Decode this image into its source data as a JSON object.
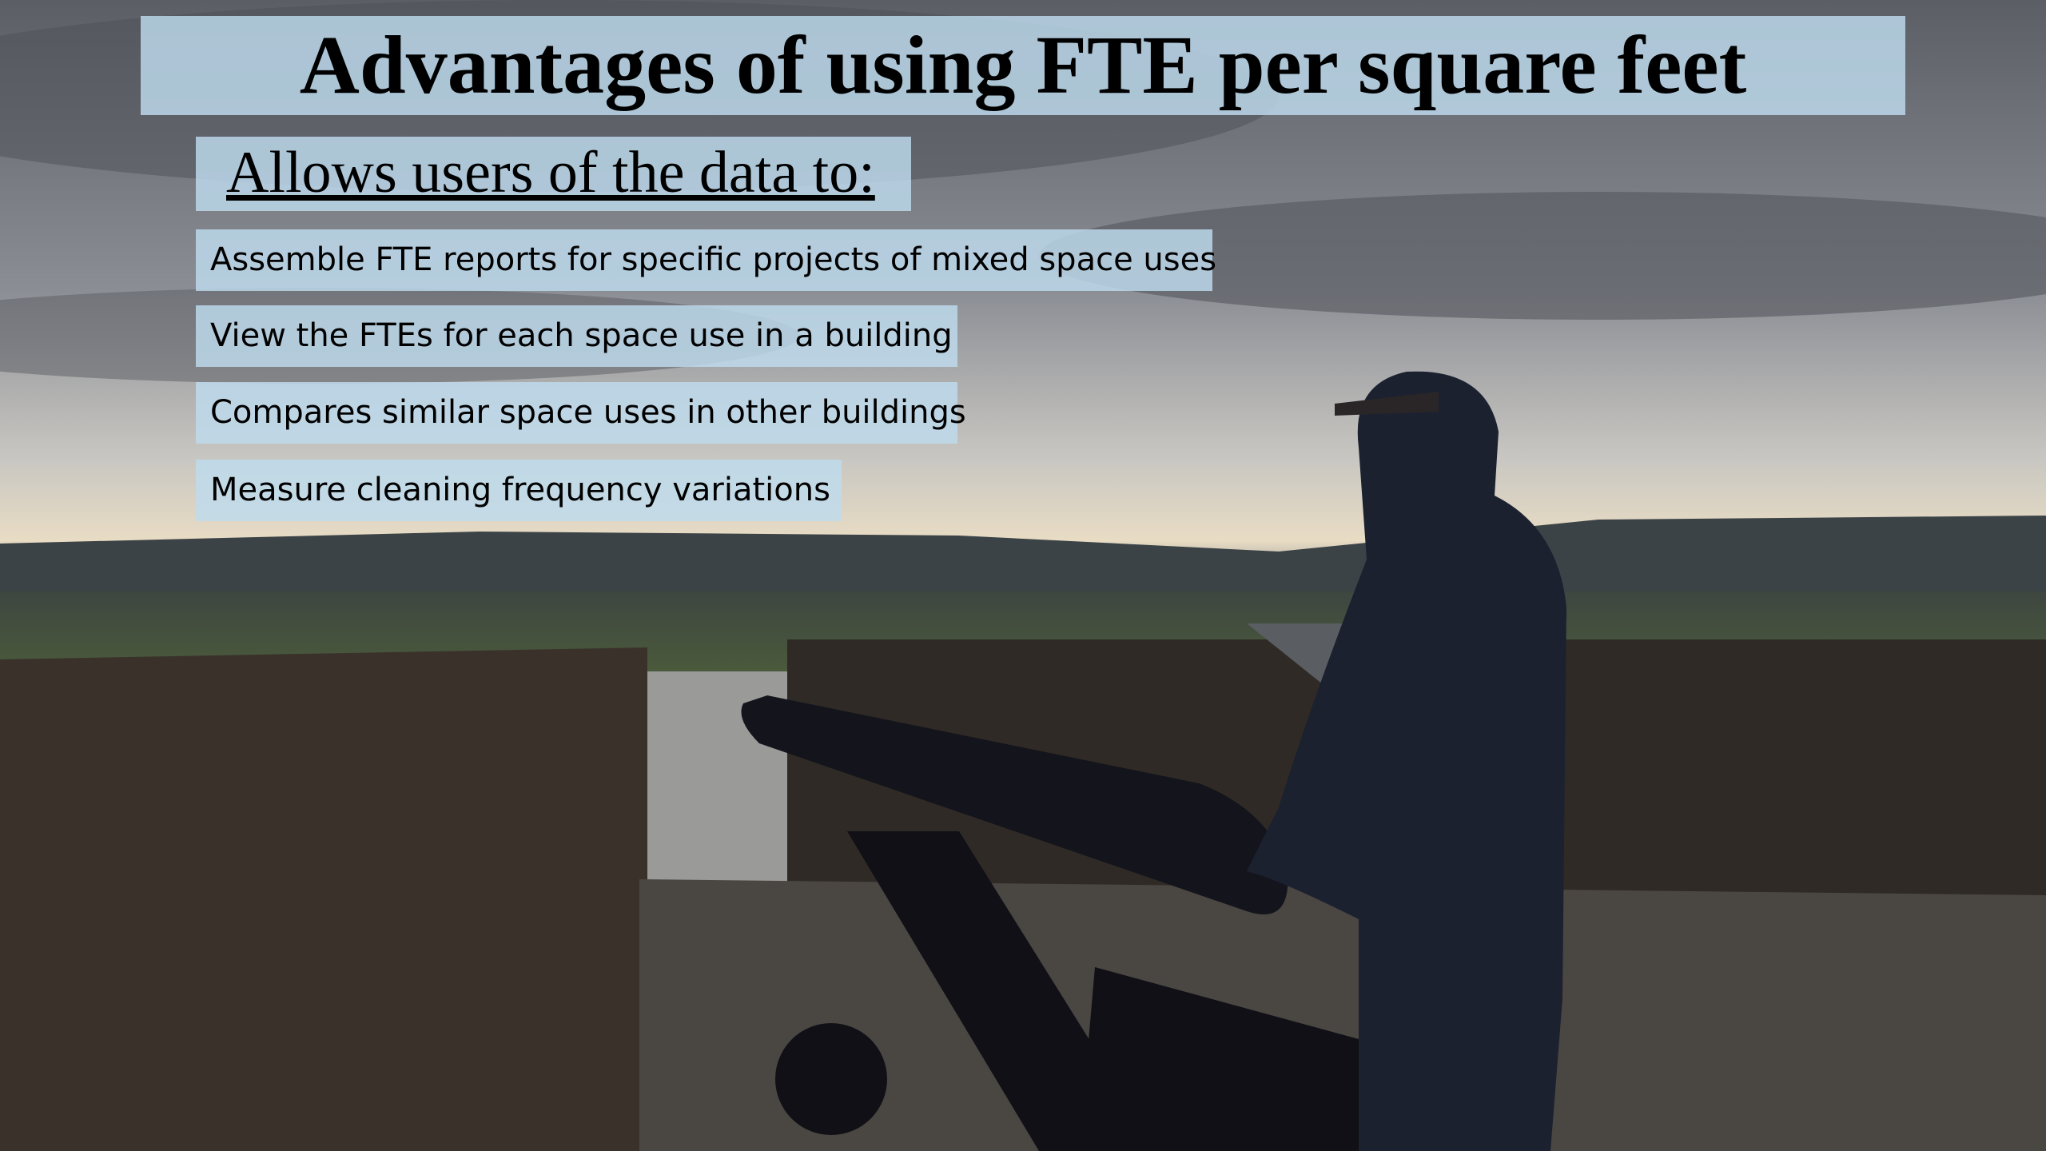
{
  "title": "Advantages of using FTE per square feet",
  "subtitle": "Allows users of the data to:",
  "bullets": [
    "Assemble FTE reports for specific projects of mixed space uses",
    "View the FTEs for each space use in a building",
    "Compares similar space uses in other buildings",
    "Measure cleaning frequency variations"
  ]
}
